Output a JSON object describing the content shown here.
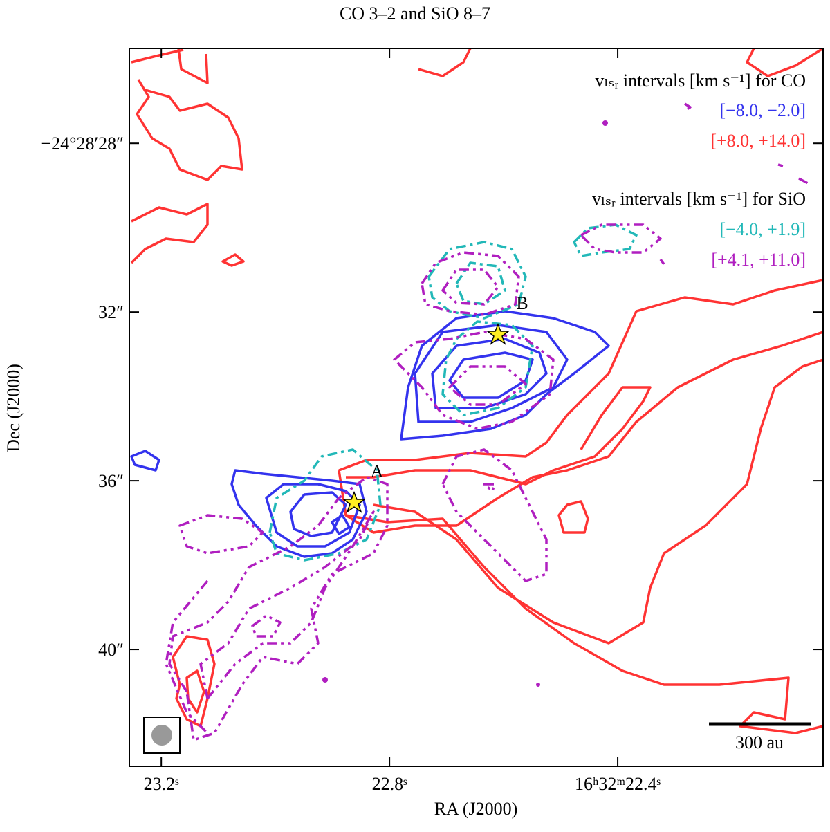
{
  "chart_data": {
    "type": "contour",
    "title": "CO 3–2 and SiO 8–7",
    "x_label": "RA (J2000)",
    "y_label": "Dec (J2000)",
    "xlim": [
      23.256,
      22.04
    ],
    "ylim": [
      25.75,
      42.77
    ],
    "xticks": [
      {
        "value": 23.2,
        "label": "23.2ˢ"
      },
      {
        "value": 22.8,
        "label": "22.8ˢ"
      },
      {
        "value": 22.4,
        "label": "16ʰ32ᵐ22.4ˢ"
      }
    ],
    "yticks": [
      {
        "value": 28,
        "label": "−24°28′28″"
      },
      {
        "value": 32,
        "label": "32″"
      },
      {
        "value": 36,
        "label": "36″"
      },
      {
        "value": 40,
        "label": "40″"
      }
    ],
    "legend_groups": [
      "vₗₛᵣ intervals [km s⁻¹] for CO",
      "vₗₛᵣ intervals [km s⁻¹] for SiO"
    ],
    "series": [
      {
        "name": "[−8.0, −2.0]",
        "color": "#3333ee"
      },
      {
        "name": "[+8.0, +14.0]",
        "color": "#ff3333"
      },
      {
        "name": "[−4.0, +1.9]",
        "color": "#22b8b8"
      },
      {
        "name": "[+4.1, +11.0]",
        "color": "#b01fc0"
      }
    ],
    "annotations": [
      "A",
      "B",
      "300 au"
    ]
  }
}
